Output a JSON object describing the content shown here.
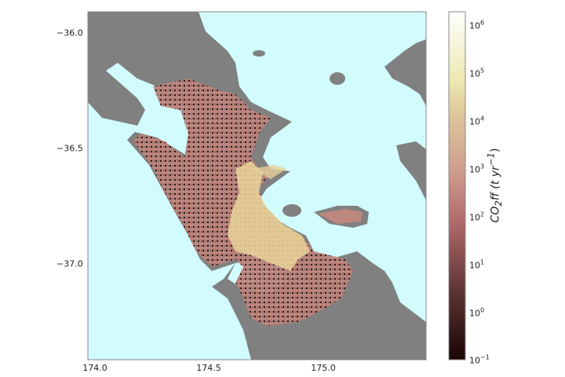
{
  "map": {
    "x_ticks": [
      "174.0",
      "174.5",
      "175.0"
    ],
    "y_ticks": [
      "−36.0",
      "−36.5",
      "−37.0"
    ],
    "colors": {
      "water": "#d1fbfd",
      "land": "#808080",
      "low": "#1a0505",
      "mid": "#c07a78",
      "high": "#f0eab8",
      "max": "#ffffff"
    }
  },
  "colorbar": {
    "label_main": "CO",
    "label_sub": "2",
    "label_rest": "ff (t yr",
    "label_sup": "−1",
    "label_end": ")",
    "scale": "log",
    "range": [
      0.1,
      2000000
    ],
    "ticks": [
      {
        "base": "10",
        "exp": "6"
      },
      {
        "base": "10",
        "exp": "5"
      },
      {
        "base": "10",
        "exp": "4"
      },
      {
        "base": "10",
        "exp": "3"
      },
      {
        "base": "10",
        "exp": "2"
      },
      {
        "base": "10",
        "exp": "1"
      },
      {
        "base": "10",
        "exp": "0"
      },
      {
        "base": "10",
        "exp": "−1"
      }
    ]
  }
}
